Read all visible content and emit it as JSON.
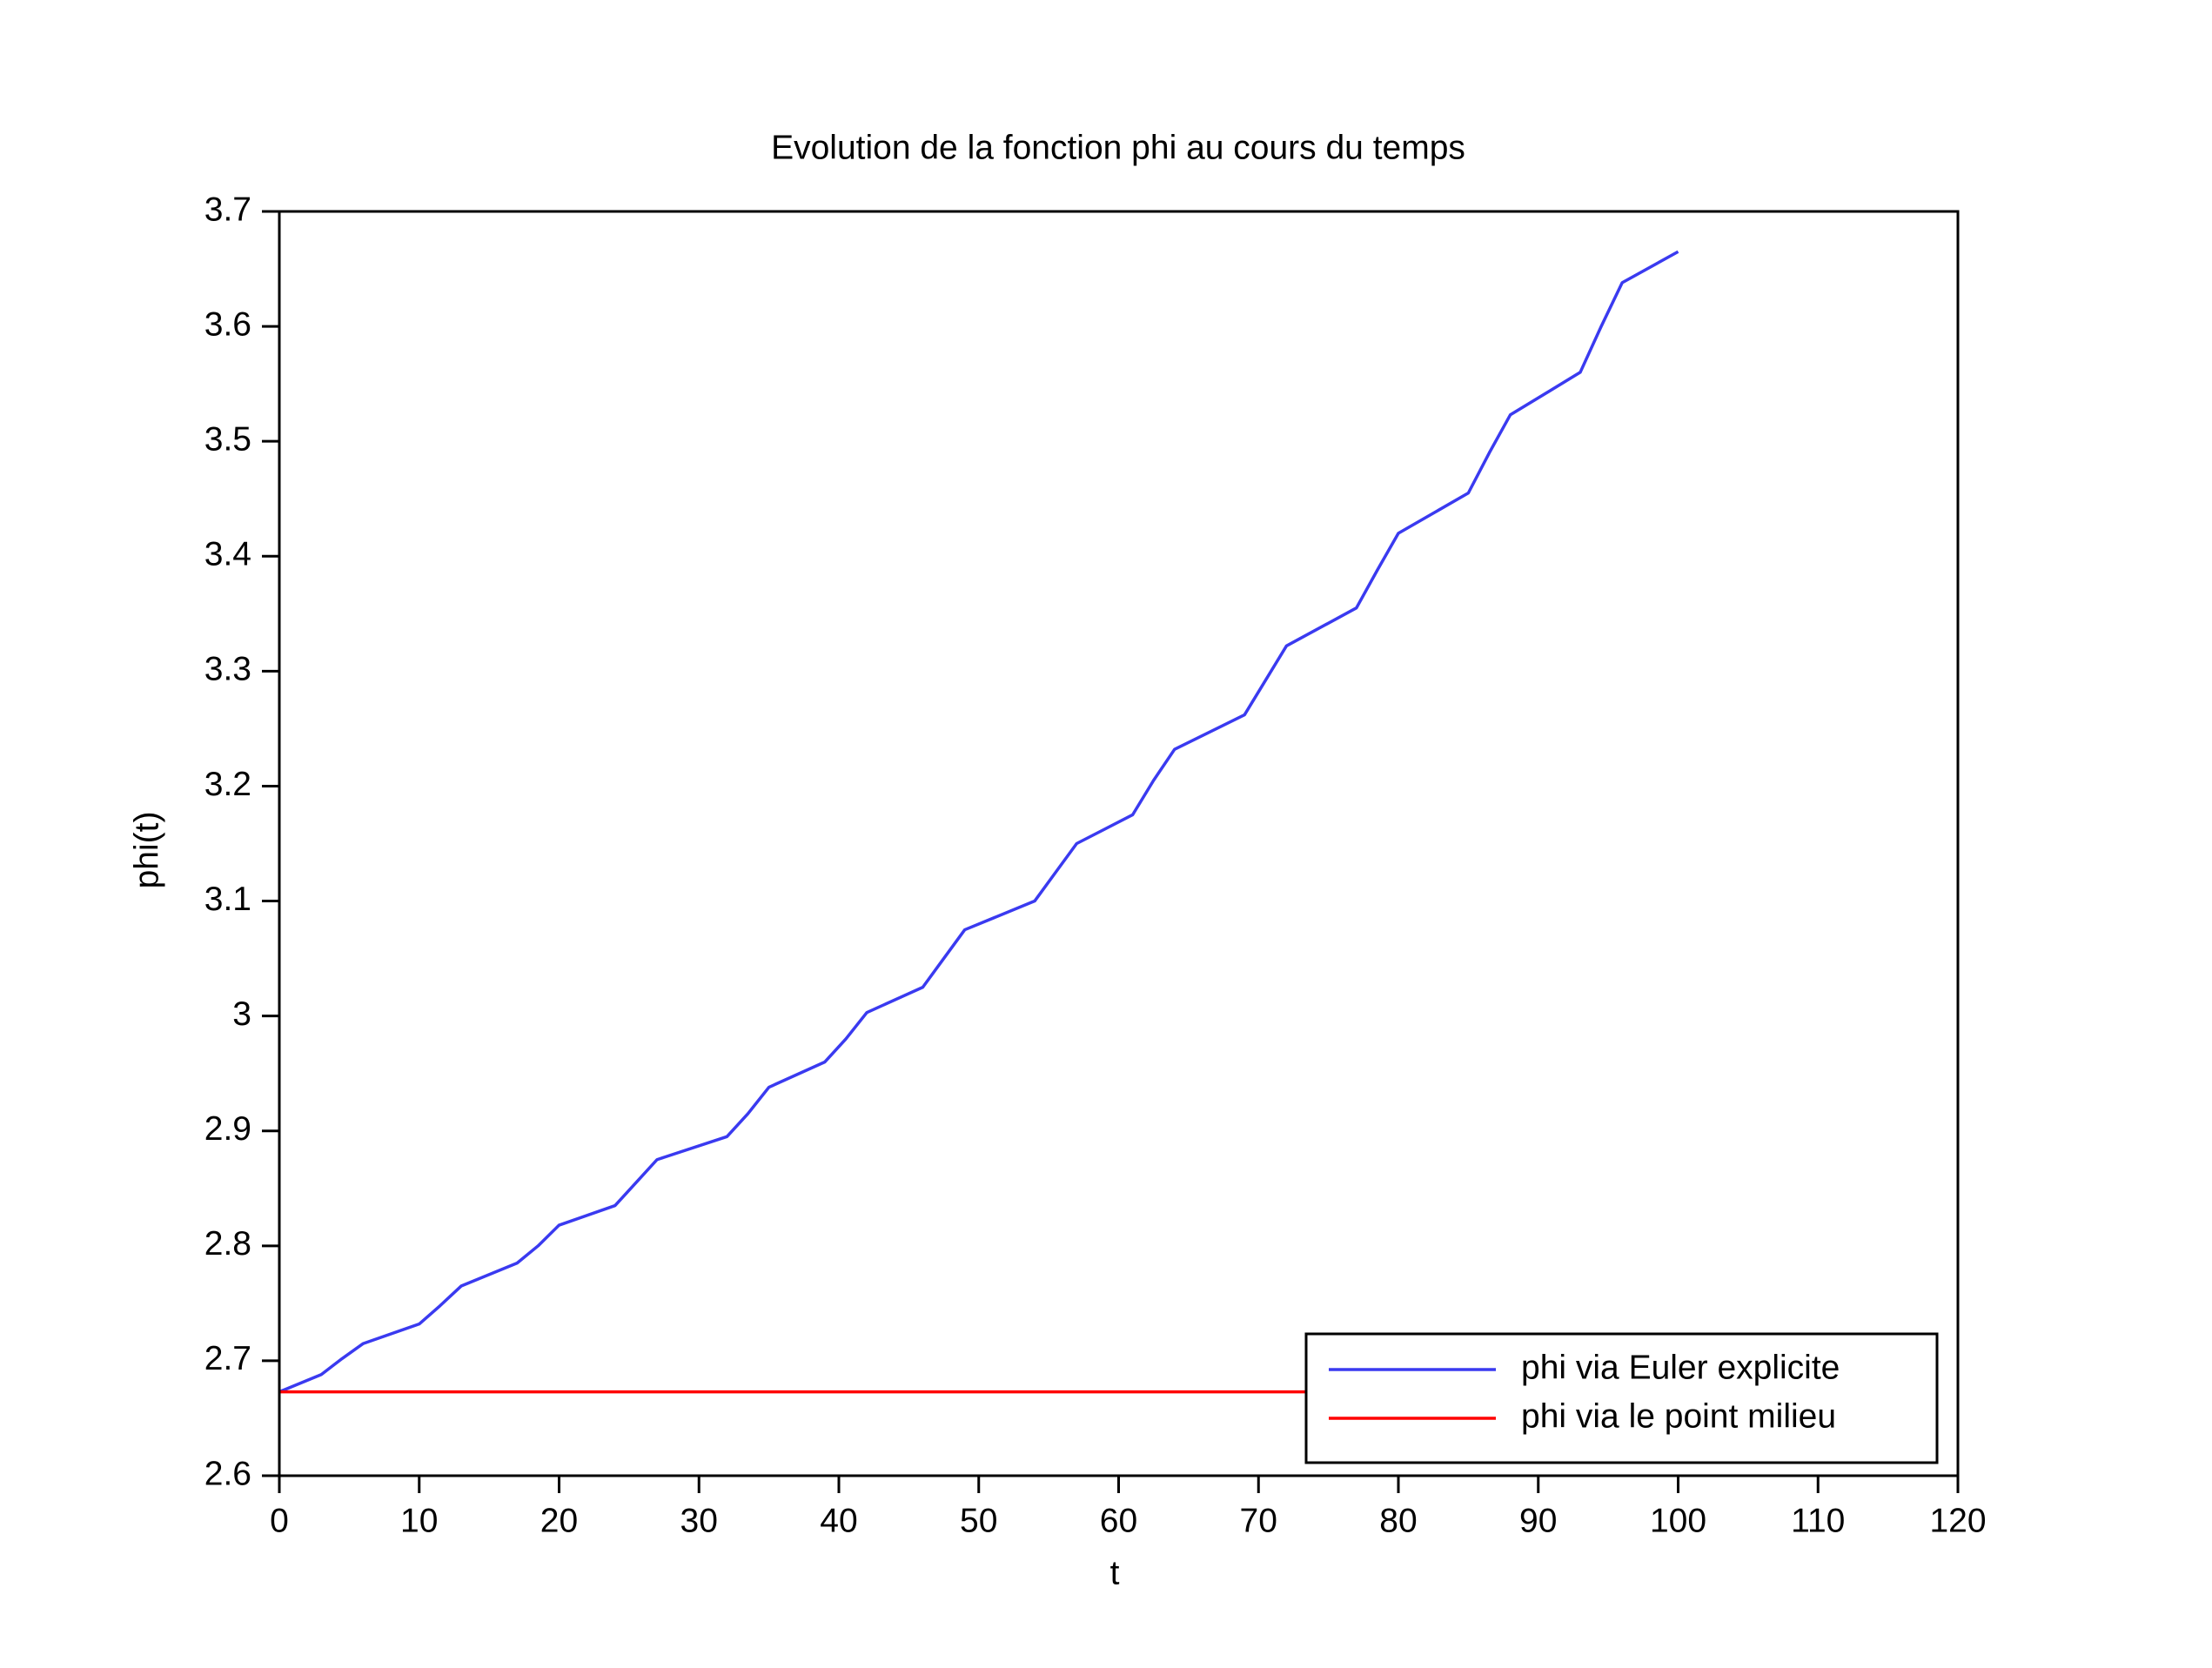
{
  "chart_data": {
    "type": "line",
    "title": "Evolution de la fonction phi au cours du temps",
    "x_label": "t",
    "y_label": "phi(t)",
    "xlim": [
      0,
      120
    ],
    "xticks": [
      0,
      10,
      20,
      30,
      40,
      50,
      60,
      70,
      80,
      90,
      100,
      110,
      120
    ],
    "ylim": [
      2.6,
      3.7
    ],
    "yticks": [
      2.6,
      2.7,
      2.8,
      2.9,
      3,
      3.1,
      3.2,
      3.3,
      3.4,
      3.5,
      3.6,
      3.7
    ],
    "legend_loc": "lower right",
    "series": [
      {
        "name": "phi via Euler explicite",
        "color": "#3a3af0",
        "x": [
          0,
          3,
          4.5,
          6,
          10,
          11.5,
          13,
          17,
          18.5,
          20,
          24,
          25.5,
          27,
          32,
          33.5,
          35,
          39,
          40.5,
          42,
          46,
          47.5,
          49,
          54,
          55.5,
          57,
          61,
          62.5,
          64,
          69,
          70.5,
          72,
          77,
          78.5,
          80,
          85,
          86.5,
          88,
          93,
          94.5,
          96,
          100
        ],
        "values": [
          2.673,
          2.688,
          2.702,
          2.715,
          2.732,
          2.748,
          2.765,
          2.785,
          2.8,
          2.818,
          2.835,
          2.855,
          2.875,
          2.895,
          2.915,
          2.938,
          2.96,
          2.98,
          3.003,
          3.025,
          3.05,
          3.075,
          3.1,
          3.125,
          3.15,
          3.175,
          3.205,
          3.232,
          3.262,
          3.292,
          3.322,
          3.355,
          3.388,
          3.42,
          3.455,
          3.49,
          3.523,
          3.56,
          3.6,
          3.638,
          3.665
        ]
      },
      {
        "name": "phi via le point milieu",
        "color": "#ff0000",
        "x": [
          0,
          100
        ],
        "values": [
          2.673,
          2.673
        ]
      }
    ]
  }
}
